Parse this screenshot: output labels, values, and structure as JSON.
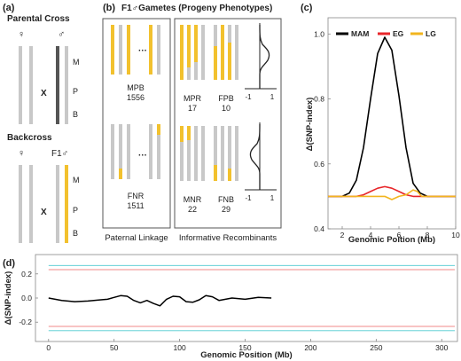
{
  "panel_a": {
    "label": "(a)",
    "parental_title": "Parental Cross",
    "backcross_title": "Backcross",
    "female_symbol": "♀",
    "male_symbol": "♂",
    "f1_male_label": "F1♂",
    "cross_symbol": "X",
    "loci": [
      "M",
      "P",
      "B"
    ]
  },
  "panel_b": {
    "label": "(b)",
    "title": "F1♂Gametes  (Progeny Phenotypes)",
    "ellipsis": "···",
    "classes": [
      {
        "code": "MPB",
        "count": "1556"
      },
      {
        "code": "FNR",
        "count": "1511"
      },
      {
        "code": "MPR",
        "count": "17"
      },
      {
        "code": "FPB",
        "count": "10"
      },
      {
        "code": "MNR",
        "count": "22"
      },
      {
        "code": "FNB",
        "count": "29"
      }
    ],
    "curve_ticks": [
      "-1",
      "1"
    ],
    "footer_left": "Paternal Linkage",
    "footer_right": "Informative Recombinants",
    "colors": {
      "yellow": "#f2c12e",
      "gray": "#c8c8c8"
    }
  },
  "panel_c": {
    "label": "(c)",
    "chart_data": {
      "type": "line",
      "xlabel": "Genomic Poition (Mb)",
      "ylabel": "Δ(SNP-index)",
      "xlim": [
        1,
        10
      ],
      "ylim": [
        0.4,
        1.05
      ],
      "x_ticks": [
        2,
        4,
        6,
        8,
        10
      ],
      "y_ticks": [
        0.4,
        0.6,
        0.8,
        1.0
      ],
      "legend_position": "top",
      "series": [
        {
          "name": "MAM",
          "color": "#000000",
          "x": [
            1,
            2,
            2.5,
            3,
            3.5,
            4,
            4.5,
            5,
            5.5,
            6,
            6.5,
            7,
            7.5,
            8,
            9,
            10
          ],
          "y": [
            0.5,
            0.5,
            0.51,
            0.55,
            0.65,
            0.8,
            0.94,
            0.99,
            0.95,
            0.81,
            0.65,
            0.54,
            0.51,
            0.5,
            0.5,
            0.5
          ]
        },
        {
          "name": "EG",
          "color": "#e8262a",
          "x": [
            1,
            2,
            3,
            3.5,
            4,
            4.5,
            5,
            5.5,
            6,
            6.5,
            7,
            8,
            9,
            10
          ],
          "y": [
            0.5,
            0.5,
            0.5,
            0.505,
            0.515,
            0.525,
            0.53,
            0.525,
            0.515,
            0.505,
            0.5,
            0.5,
            0.5,
            0.5
          ]
        },
        {
          "name": "LG",
          "color": "#f2b51e",
          "x": [
            1,
            2,
            3,
            4,
            5,
            5.5,
            6,
            6.5,
            7,
            7.3,
            7.6,
            8,
            9,
            10
          ],
          "y": [
            0.5,
            0.5,
            0.5,
            0.5,
            0.5,
            0.49,
            0.5,
            0.505,
            0.52,
            0.515,
            0.5,
            0.5,
            0.5,
            0.5
          ]
        }
      ]
    }
  },
  "panel_d": {
    "label": "(d)",
    "chart_data": {
      "type": "line",
      "xlabel": "Genomic Position (Mb)",
      "ylabel": "Δ(SNP-index)",
      "xlim": [
        -10,
        312
      ],
      "ylim": [
        -0.36,
        0.36
      ],
      "x_ticks": [
        0,
        50,
        100,
        150,
        200,
        250,
        300
      ],
      "y_ticks": [
        -0.2,
        0.0,
        0.2
      ],
      "series": [
        {
          "name": "",
          "color": "#000000",
          "x": [
            0,
            10,
            20,
            30,
            40,
            45,
            50,
            55,
            60,
            65,
            70,
            75,
            80,
            85,
            90,
            95,
            100,
            105,
            110,
            115,
            120,
            125,
            130,
            135,
            140,
            150,
            160,
            170
          ],
          "y": [
            0.0,
            -0.02,
            -0.03,
            -0.025,
            -0.015,
            -0.01,
            0.005,
            0.02,
            0.015,
            -0.02,
            -0.04,
            -0.02,
            -0.045,
            -0.065,
            -0.01,
            0.015,
            0.01,
            -0.03,
            -0.035,
            -0.015,
            0.02,
            0.01,
            -0.02,
            -0.01,
            0.0,
            -0.01,
            0.005,
            0.0
          ]
        },
        {
          "name": "",
          "color": "#4ec9cf",
          "x": [
            0,
            310
          ],
          "y": [
            0.27,
            0.27
          ]
        },
        {
          "name": "",
          "color": "#f08a8a",
          "x": [
            0,
            310
          ],
          "y": [
            0.235,
            0.235
          ]
        },
        {
          "name": "",
          "color": "#f08a8a",
          "x": [
            0,
            310
          ],
          "y": [
            -0.235,
            -0.235
          ]
        },
        {
          "name": "",
          "color": "#4ec9cf",
          "x": [
            0,
            310
          ],
          "y": [
            -0.27,
            -0.27
          ]
        }
      ]
    }
  }
}
